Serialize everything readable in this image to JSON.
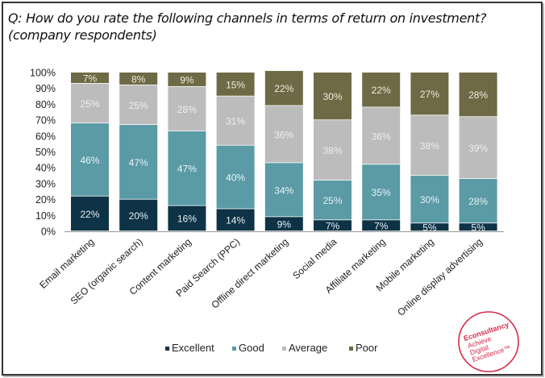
{
  "title_line1": "Q: How do you rate the following channels in terms of return on investment?",
  "title_line2": "(company respondents)",
  "stamp": {
    "brand": "Econsultancy",
    "tagline": [
      "Achieve",
      "Digital",
      "Excellence™"
    ],
    "color": "#d62a4a"
  },
  "chart_data": {
    "type": "bar",
    "stacked": true,
    "title": "Q: How do you rate the following channels in terms of return on investment? (company respondents)",
    "xlabel": "",
    "ylabel": "",
    "ylim": [
      0,
      100
    ],
    "yticks": [
      "0%",
      "10%",
      "20%",
      "30%",
      "40%",
      "50%",
      "60%",
      "70%",
      "80%",
      "90%",
      "100%"
    ],
    "grid": false,
    "legend_position": "bottom",
    "categories": [
      "Email marketing",
      "SEO (organic search)",
      "Content marketing",
      "Paid Search (PPC)",
      "Offline direct marketing",
      "Social media",
      "Affiliate marketing",
      "Mobile marketing",
      "Online display advertising"
    ],
    "series": [
      {
        "name": "Excellent",
        "color": "#0e3346",
        "label_color": "#e6eef2",
        "values": [
          22,
          20,
          16,
          14,
          9,
          7,
          7,
          5,
          5
        ]
      },
      {
        "name": "Good",
        "color": "#5a9ba6",
        "label_color": "#e8f2f4",
        "values": [
          46,
          47,
          47,
          40,
          34,
          25,
          35,
          30,
          28
        ]
      },
      {
        "name": "Average",
        "color": "#bcbcbc",
        "label_color": "#eeeeee",
        "values": [
          25,
          25,
          28,
          31,
          36,
          38,
          36,
          38,
          39
        ]
      },
      {
        "name": "Poor",
        "color": "#6e6a45",
        "label_color": "#ecebdd",
        "values": [
          7,
          8,
          9,
          15,
          22,
          30,
          22,
          27,
          28
        ]
      }
    ]
  }
}
